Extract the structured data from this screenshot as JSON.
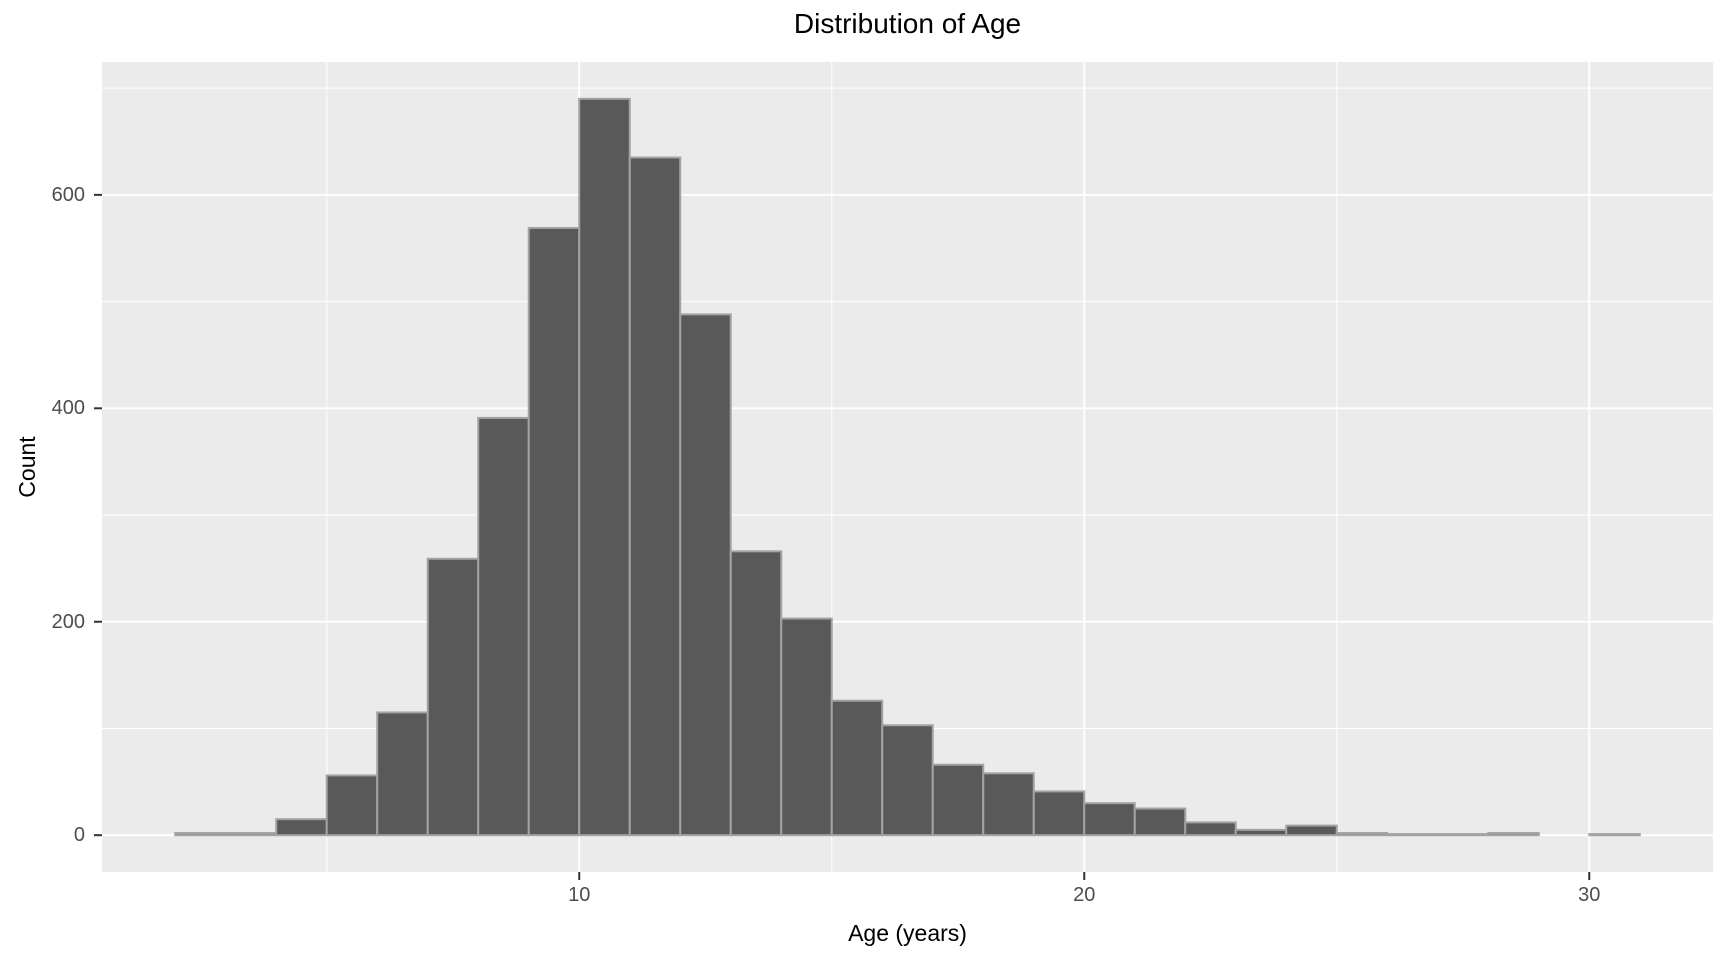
{
  "chart": {
    "title": "Distribution of Age",
    "xlabel": "Age (years)",
    "ylabel": "Count"
  },
  "chart_data": {
    "type": "bar",
    "kind": "histogram",
    "title": "Distribution of Age",
    "xlabel": "Age (years)",
    "ylabel": "Count",
    "bin_width": 1,
    "bin_starts": [
      2,
      3,
      4,
      5,
      6,
      7,
      8,
      9,
      10,
      11,
      12,
      13,
      14,
      15,
      16,
      17,
      18,
      19,
      20,
      21,
      22,
      23,
      24,
      25,
      26,
      27,
      28,
      29,
      30
    ],
    "counts": [
      2,
      2,
      15,
      56,
      115,
      259,
      391,
      569,
      690,
      635,
      488,
      266,
      203,
      126,
      103,
      66,
      58,
      41,
      30,
      25,
      12,
      5,
      9,
      2,
      1,
      1,
      2,
      0,
      1
    ],
    "xlim": [
      0.55,
      32.45
    ],
    "ylim": [
      -34.5,
      724.5
    ],
    "x_major_ticks": [
      10,
      20,
      30
    ],
    "x_major_tick_labels": [
      "10",
      "20",
      "30"
    ],
    "x_minor_gridlines": [
      5,
      15,
      25
    ],
    "y_major_ticks": [
      0,
      200,
      400,
      600
    ],
    "y_major_tick_labels": [
      "0",
      "200",
      "400",
      "600"
    ],
    "y_minor_gridlines": [
      100,
      300,
      500,
      700
    ],
    "grid": "on",
    "legend": "none",
    "colors": {
      "bar_fill": "#595959",
      "bar_stroke": "#A3A3A3",
      "panel_bg": "#EBEBEB",
      "grid": "#FFFFFF",
      "tick_mark": "#333333",
      "tick_label": "#4D4D4D",
      "title": "#000000"
    }
  }
}
